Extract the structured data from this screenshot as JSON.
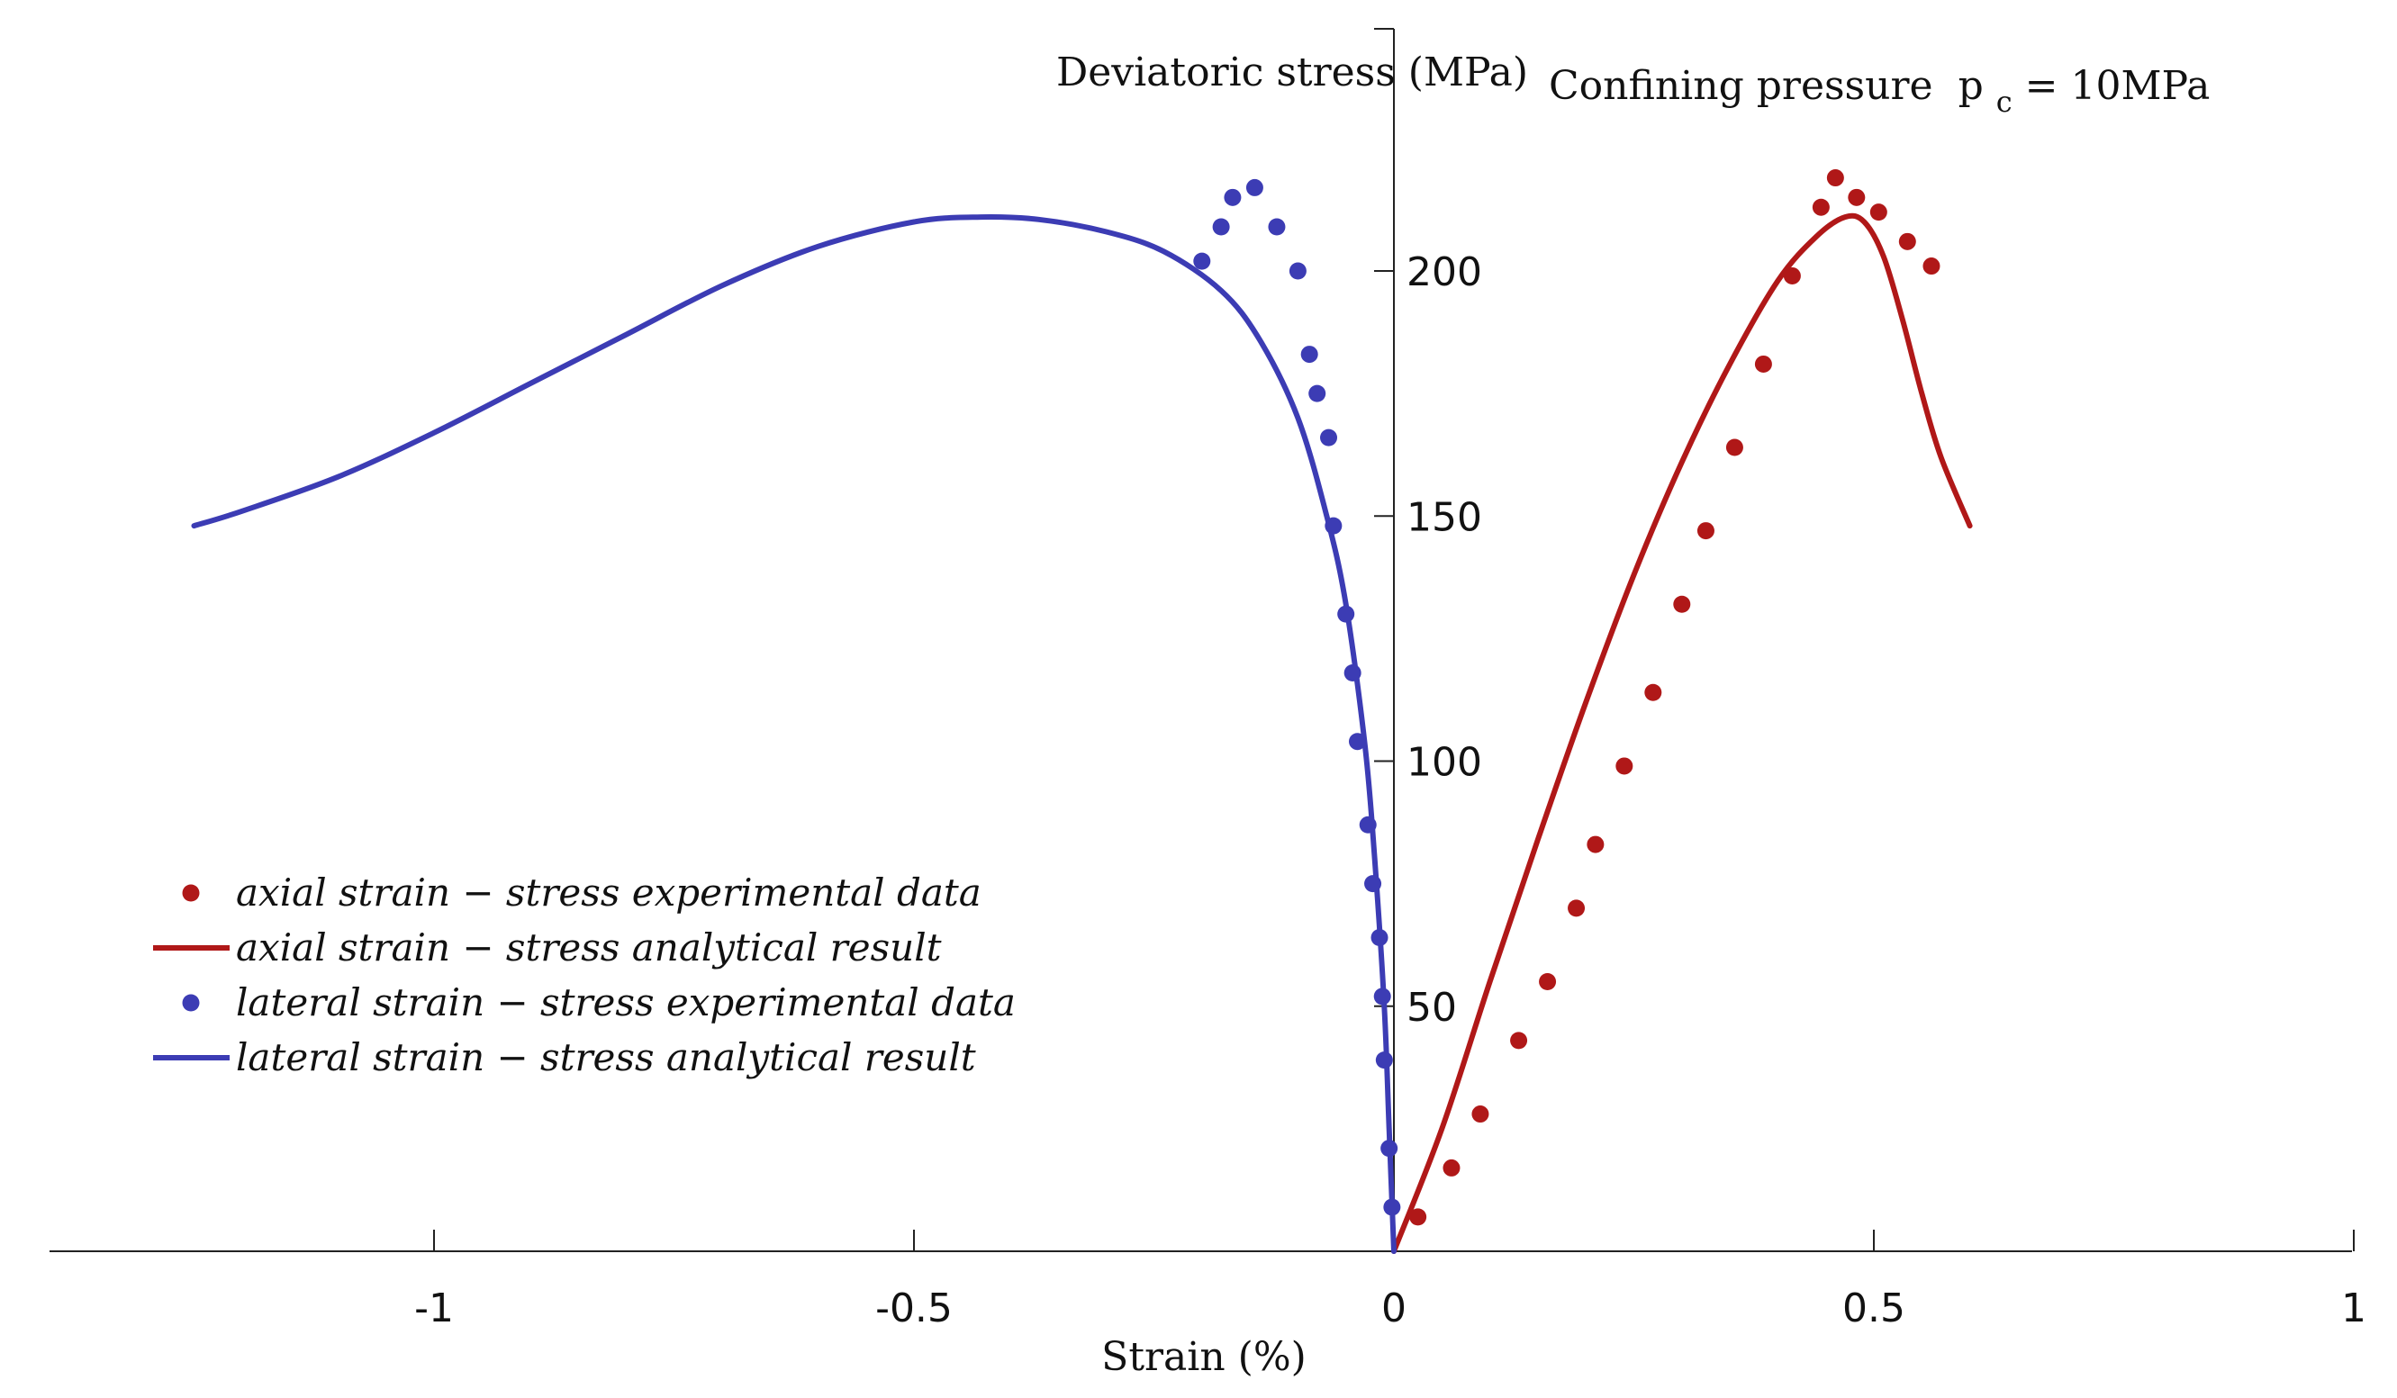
{
  "chart_data": {
    "type": "line",
    "title": "Confining pressure",
    "title_subscript": "c",
    "title_prefix": "p",
    "title_suffix": "= 10MPa",
    "xlabel": "Strain (%)",
    "ylabel": "Deviatoric stress (MPa)",
    "xlim": [
      -1.45,
      1.0
    ],
    "ylim": [
      0,
      250
    ],
    "xticks": [
      -1,
      -0.5,
      0,
      0.5,
      1
    ],
    "xtick_labels": [
      "-1",
      "-0.5",
      "0",
      "0.5",
      "1"
    ],
    "yticks": [
      50,
      100,
      150,
      200
    ],
    "ytick_labels": [
      "50",
      "100",
      "150",
      "200"
    ],
    "legend_position": "lower-left",
    "colors": {
      "axial": "#b01818",
      "lateral": "#3c3cb4"
    },
    "series": [
      {
        "name": "axial strain − stress experimental data",
        "kind": "scatter",
        "color": "#b01818",
        "x": [
          0.025,
          0.06,
          0.09,
          0.13,
          0.16,
          0.19,
          0.21,
          0.24,
          0.27,
          0.3,
          0.325,
          0.355,
          0.385,
          0.415,
          0.445,
          0.46,
          0.482,
          0.505,
          0.535,
          0.56
        ],
        "y": [
          7,
          17,
          28,
          43,
          55,
          70,
          83,
          99,
          114,
          132,
          147,
          164,
          181,
          199,
          213,
          219,
          215,
          212,
          206,
          201
        ]
      },
      {
        "name": "axial strain − stress analytical result",
        "kind": "line",
        "color": "#b01818",
        "x": [
          0,
          0.05,
          0.1,
          0.15,
          0.2,
          0.25,
          0.3,
          0.35,
          0.4,
          0.44,
          0.47,
          0.49,
          0.51,
          0.53,
          0.55,
          0.57,
          0.6
        ],
        "y": [
          0,
          25,
          55,
          84,
          112,
          138,
          161,
          181,
          198,
          207,
          211,
          210,
          203,
          190,
          175,
          162,
          148
        ]
      },
      {
        "name": "lateral strain − stress experimental data",
        "kind": "scatter",
        "color": "#3c3cb4",
        "x": [
          -0.002,
          -0.005,
          -0.01,
          -0.012,
          -0.015,
          -0.022,
          -0.027,
          -0.038,
          -0.043,
          -0.05,
          -0.063,
          -0.068,
          -0.08,
          -0.088,
          -0.1,
          -0.122,
          -0.145,
          -0.168,
          -0.18,
          -0.2
        ],
        "y": [
          9,
          21,
          39,
          52,
          64,
          75,
          87,
          104,
          118,
          130,
          148,
          166,
          175,
          183,
          200,
          209,
          217,
          215,
          209,
          202
        ]
      },
      {
        "name": "lateral strain − stress analytical result",
        "kind": "line",
        "color": "#3c3cb4",
        "x": [
          0,
          -0.005,
          -0.01,
          -0.02,
          -0.03,
          -0.05,
          -0.07,
          -0.1,
          -0.14,
          -0.18,
          -0.24,
          -0.3,
          -0.37,
          -0.43,
          -0.5,
          -0.6,
          -0.7,
          -0.8,
          -0.9,
          -1.0,
          -1.1,
          -1.2,
          -1.25
        ],
        "y": [
          0,
          25,
          50,
          80,
          103,
          132,
          150,
          170,
          186,
          196,
          204,
          208,
          210.5,
          211,
          210,
          205,
          197,
          187,
          177,
          167,
          158,
          151,
          148
        ]
      }
    ]
  }
}
